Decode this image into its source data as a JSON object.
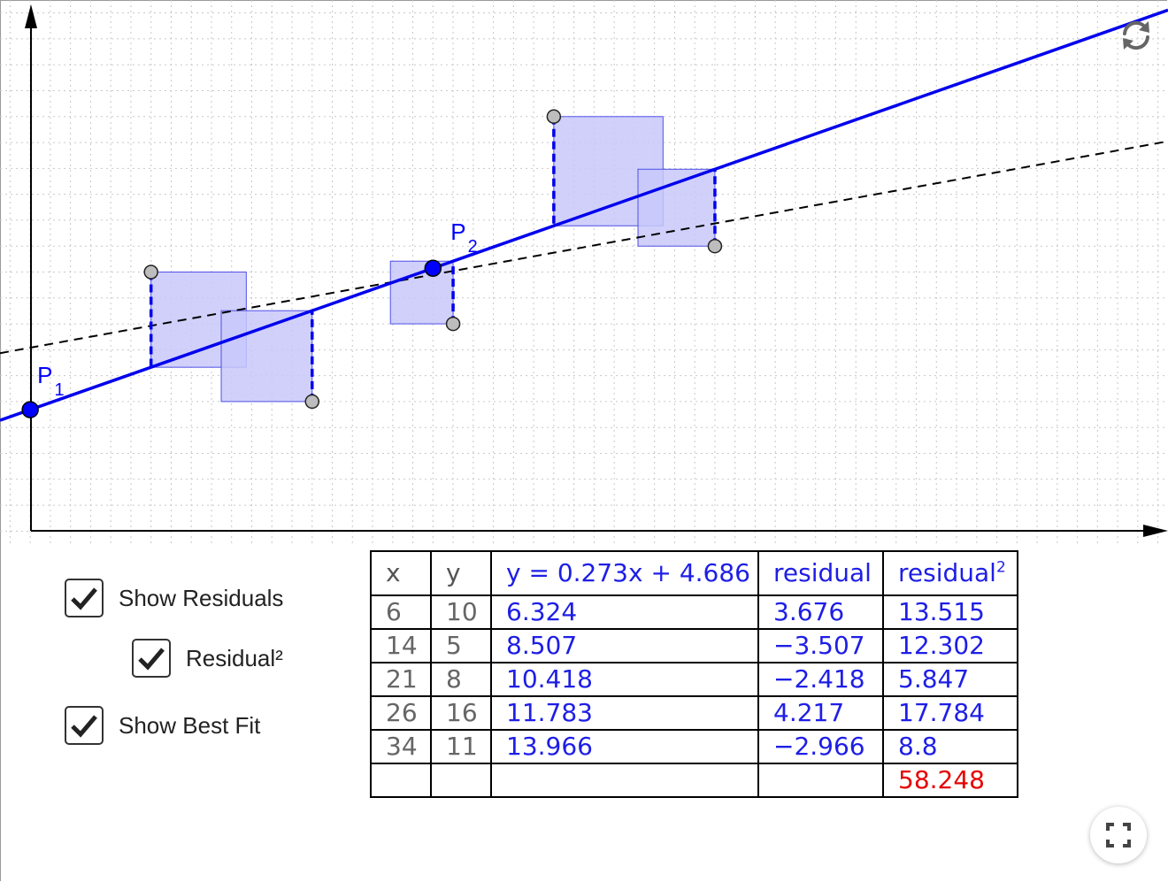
{
  "chart_data": {
    "type": "scatter",
    "points": [
      {
        "x": 6,
        "y": 10
      },
      {
        "x": 14,
        "y": 5
      },
      {
        "x": 21,
        "y": 8
      },
      {
        "x": 26,
        "y": 16
      },
      {
        "x": 34,
        "y": 11
      }
    ],
    "line_through_points": {
      "P1": {
        "name": "P",
        "sub": "1",
        "x": 0,
        "y": 4.686
      },
      "P2": {
        "name": "P",
        "sub": "2",
        "x": 20,
        "y": 10.146
      },
      "slope": 0.273,
      "intercept": 4.686,
      "color": "#0000ee"
    },
    "best_fit_line": {
      "slope": 0.141,
      "intercept": 7.08,
      "style": "dashed",
      "color": "#000000"
    },
    "x_range": [
      -1.5,
      56.5
    ],
    "y_range": [
      -0.5,
      20.5
    ],
    "grid": true,
    "residual_color": "#0000ee",
    "square_fill": "#c8c8fa"
  },
  "controls": {
    "show_residuals": {
      "label": "Show Residuals",
      "checked": true
    },
    "residual_sq": {
      "label": "Residual²",
      "checked": true
    },
    "show_best_fit": {
      "label": "Show Best Fit",
      "checked": true
    }
  },
  "table": {
    "headers": {
      "x": "x",
      "y": "y",
      "equation": "y = 0.273x + 4.686",
      "residual": "residual",
      "residual_sq_base": "residual",
      "residual_sq_exp": "2"
    },
    "rows": [
      {
        "x": "6",
        "y": "10",
        "yhat": "6.324",
        "residual": "3.676",
        "residual_sq": "13.515"
      },
      {
        "x": "14",
        "y": "5",
        "yhat": "8.507",
        "residual": "−3.507",
        "residual_sq": "12.302"
      },
      {
        "x": "21",
        "y": "8",
        "yhat": "10.418",
        "residual": "−2.418",
        "residual_sq": "5.847"
      },
      {
        "x": "26",
        "y": "16",
        "yhat": "11.783",
        "residual": "4.217",
        "residual_sq": "17.784"
      },
      {
        "x": "34",
        "y": "11",
        "yhat": "13.966",
        "residual": "−2.966",
        "residual_sq": "8.8"
      }
    ],
    "total": "58.248"
  },
  "icons": {
    "reset": "reset-icon",
    "fullscreen": "fullscreen-icon"
  }
}
